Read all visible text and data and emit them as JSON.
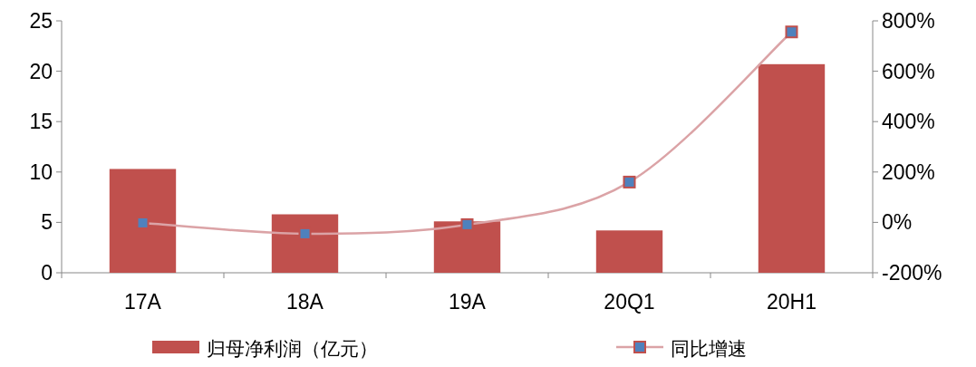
{
  "chart_data": {
    "type": "bar",
    "categories": [
      "17A",
      "18A",
      "19A",
      "20Q1",
      "20H1"
    ],
    "series": [
      {
        "name": "归母净利润（亿元）",
        "color": "#c0504d",
        "values": [
          10.3,
          5.8,
          5.1,
          4.2,
          20.7
        ]
      },
      {
        "name": "同比增速",
        "type": "line",
        "color": "#dba3a6",
        "axis": "y2",
        "marker": "square",
        "values": [
          -2,
          -45,
          -9,
          160,
          756
        ]
      }
    ],
    "ylim": [
      0,
      25
    ],
    "yticks": [
      0,
      5,
      10,
      15,
      20,
      25
    ],
    "y2lim": [
      -200,
      800
    ],
    "y2ticks": [
      {
        "value": -200,
        "label": "-200%"
      },
      {
        "value": 0,
        "label": "0%"
      },
      {
        "value": 200,
        "label": "200%"
      },
      {
        "value": 400,
        "label": "400%"
      },
      {
        "value": 600,
        "label": "600%"
      },
      {
        "value": 800,
        "label": "800%"
      }
    ],
    "legend": "bottom"
  }
}
